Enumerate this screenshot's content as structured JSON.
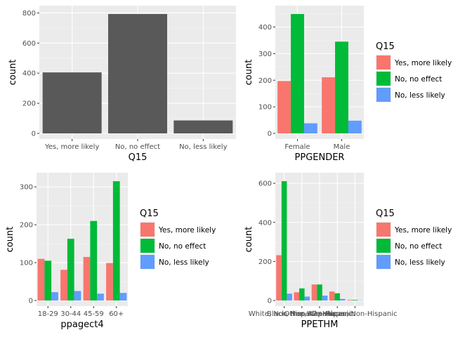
{
  "colors": {
    "panel": "#EBEBEB",
    "grid_major": "#FFFFFF",
    "grid_minor": "#F4F4F4",
    "single_bar": "#595959",
    "series": [
      "#F8766D",
      "#00BA38",
      "#619CFF"
    ]
  },
  "chart_data": [
    {
      "type": "bar",
      "xlabel": "Q15",
      "ylabel": "count",
      "categories": [
        "Yes, more likely",
        "No, no effect",
        "No, less likely"
      ],
      "values": [
        405,
        793,
        86
      ],
      "yticks": [
        0,
        200,
        400,
        600,
        800
      ],
      "ylim": [
        0,
        830
      ],
      "grid": true
    },
    {
      "type": "bar",
      "xlabel": "PPGENDER",
      "ylabel": "count",
      "categories": [
        "Female",
        "Male"
      ],
      "series": [
        {
          "name": "Yes, more likely",
          "values": [
            197,
            211
          ]
        },
        {
          "name": "No, no effect",
          "values": [
            449,
            345
          ]
        },
        {
          "name": "No, less likely",
          "values": [
            38,
            48
          ]
        }
      ],
      "yticks": [
        0,
        100,
        200,
        300,
        400
      ],
      "ylim": [
        0,
        470
      ],
      "legend_title": "Q15",
      "legend_position": "right",
      "grid": true
    },
    {
      "type": "bar",
      "xlabel": "ppagect4",
      "ylabel": "count",
      "categories": [
        "18-29",
        "30-44",
        "45-59",
        "60+"
      ],
      "series": [
        {
          "name": "Yes, more likely",
          "values": [
            110,
            81,
            115,
            99
          ]
        },
        {
          "name": "No, no effect",
          "values": [
            105,
            163,
            210,
            315
          ]
        },
        {
          "name": "No, less likely",
          "values": [
            22,
            25,
            18,
            20
          ]
        }
      ],
      "yticks": [
        0,
        100,
        200,
        300
      ],
      "ylim": [
        0,
        330
      ],
      "legend_title": "Q15",
      "legend_position": "right",
      "grid": true
    },
    {
      "type": "bar",
      "xlabel": "PPETHM",
      "ylabel": "count",
      "categories": [
        "White, Non-Hispanic",
        "Black, Non-Hispanic",
        "Other, Non-Hispanic",
        "Hispanic",
        "2+ Races, Non-Hispanic"
      ],
      "series": [
        {
          "name": "Yes, more likely",
          "values": [
            232,
            42,
            82,
            46,
            3
          ]
        },
        {
          "name": "No, no effect",
          "values": [
            611,
            62,
            82,
            37,
            3
          ]
        },
        {
          "name": "No, less likely",
          "values": [
            35,
            20,
            25,
            8,
            1
          ]
        }
      ],
      "yticks": [
        0,
        200,
        400,
        600
      ],
      "ylim": [
        0,
        640
      ],
      "legend_title": "Q15",
      "legend_position": "right",
      "grid": true
    }
  ]
}
